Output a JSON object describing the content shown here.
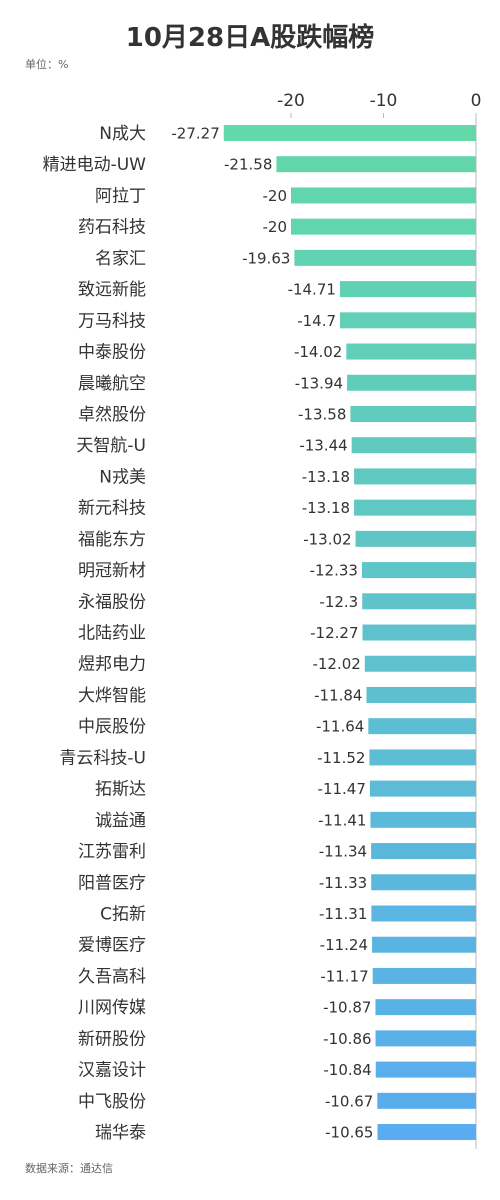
{
  "source": "数据来源：通达信",
  "chart_data": {
    "type": "bar",
    "orientation": "horizontal",
    "title": "10月28日A股跌幅榜",
    "unit_label": "单位：%",
    "categories": [
      "N成大",
      "精进电动-UW",
      "阿拉丁",
      "药石科技",
      "名家汇",
      "致远新能",
      "万马科技",
      "中泰股份",
      "晨曦航空",
      "卓然股份",
      "天智航-U",
      "N戎美",
      "新元科技",
      "福能东方",
      "明冠新材",
      "永福股份",
      "北陆药业",
      "煜邦电力",
      "大烨智能",
      "中辰股份",
      "青云科技-U",
      "拓斯达",
      "诚益通",
      "江苏雷利",
      "阳普医疗",
      "C拓新",
      "爱博医疗",
      "久吾高科",
      "川网传媒",
      "新研股份",
      "汉嘉设计",
      "中飞股份",
      "瑞华泰"
    ],
    "values": [
      -27.27,
      -21.58,
      -20,
      -20,
      -19.63,
      -14.71,
      -14.7,
      -14.02,
      -13.94,
      -13.58,
      -13.44,
      -13.18,
      -13.18,
      -13.02,
      -12.33,
      -12.3,
      -12.27,
      -12.02,
      -11.84,
      -11.64,
      -11.52,
      -11.47,
      -11.41,
      -11.34,
      -11.33,
      -11.31,
      -11.24,
      -11.17,
      -10.87,
      -10.86,
      -10.84,
      -10.67,
      -10.65
    ],
    "xticks": [
      -20,
      -10,
      0
    ],
    "xlim": [
      -30,
      0
    ],
    "grid": false,
    "legend": "none",
    "colors": {
      "start": "#63D8A9",
      "end": "#58ACEF",
      "axis": "#BBBBBB"
    }
  }
}
